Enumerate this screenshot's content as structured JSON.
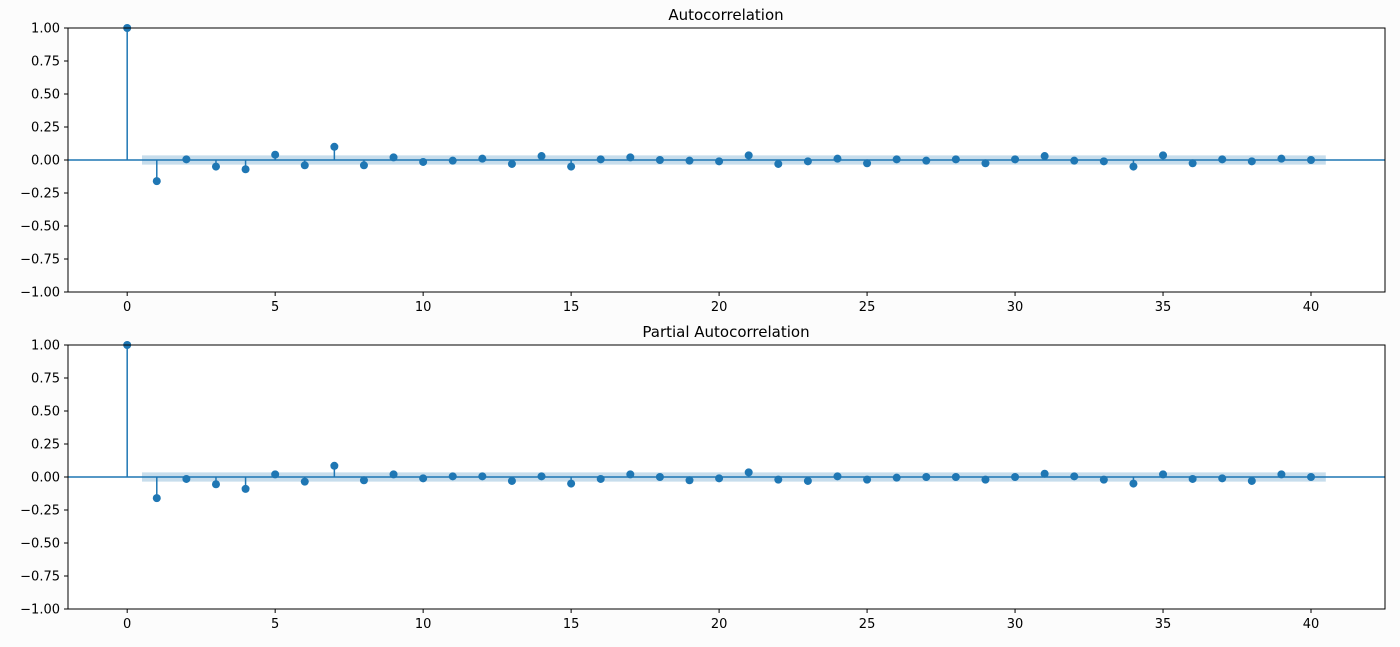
{
  "colors": {
    "stem": "#1f77b4",
    "band": "#1f77b4",
    "axis": "#000000",
    "background": "#fcfcfc"
  },
  "chart_data": [
    {
      "type": "stem",
      "title": "Autocorrelation",
      "xlabel": "",
      "ylabel": "",
      "xlim": [
        -2,
        42.5
      ],
      "ylim": [
        -1.0,
        1.0
      ],
      "xticks": [
        0,
        5,
        10,
        15,
        20,
        25,
        30,
        35,
        40
      ],
      "yticks": [
        -1.0,
        -0.75,
        -0.5,
        -0.25,
        0.0,
        0.25,
        0.5,
        0.75,
        1.0
      ],
      "yticklabels": [
        "−1.00",
        "−0.75",
        "−0.50",
        "−0.25",
        "0.00",
        "0.25",
        "0.50",
        "0.75",
        "1.00"
      ],
      "confidence_band": {
        "x": [
          0.5,
          40.5
        ],
        "lower": -0.035,
        "upper": 0.035
      },
      "x": [
        0,
        1,
        2,
        3,
        4,
        5,
        6,
        7,
        8,
        9,
        10,
        11,
        12,
        13,
        14,
        15,
        16,
        17,
        18,
        19,
        20,
        21,
        22,
        23,
        24,
        25,
        26,
        27,
        28,
        29,
        30,
        31,
        32,
        33,
        34,
        35,
        36,
        37,
        38,
        39,
        40
      ],
      "values": [
        1.0,
        -0.16,
        0.005,
        -0.05,
        -0.07,
        0.04,
        -0.04,
        0.1,
        -0.04,
        0.02,
        -0.015,
        -0.005,
        0.01,
        -0.03,
        0.03,
        -0.05,
        0.005,
        0.02,
        0.0,
        -0.005,
        -0.01,
        0.035,
        -0.03,
        -0.01,
        0.01,
        -0.025,
        0.005,
        -0.005,
        0.005,
        -0.025,
        0.005,
        0.03,
        -0.005,
        -0.01,
        -0.05,
        0.035,
        -0.025,
        0.005,
        -0.01,
        0.01,
        0.0
      ]
    },
    {
      "type": "stem",
      "title": "Partial Autocorrelation",
      "xlabel": "",
      "ylabel": "",
      "xlim": [
        -2,
        42.5
      ],
      "ylim": [
        -1.0,
        1.0
      ],
      "xticks": [
        0,
        5,
        10,
        15,
        20,
        25,
        30,
        35,
        40
      ],
      "yticks": [
        -1.0,
        -0.75,
        -0.5,
        -0.25,
        0.0,
        0.25,
        0.5,
        0.75,
        1.0
      ],
      "yticklabels": [
        "−1.00",
        "−0.75",
        "−0.50",
        "−0.25",
        "0.00",
        "0.25",
        "0.50",
        "0.75",
        "1.00"
      ],
      "confidence_band": {
        "x": [
          0.5,
          40.5
        ],
        "lower": -0.035,
        "upper": 0.035
      },
      "x": [
        0,
        1,
        2,
        3,
        4,
        5,
        6,
        7,
        8,
        9,
        10,
        11,
        12,
        13,
        14,
        15,
        16,
        17,
        18,
        19,
        20,
        21,
        22,
        23,
        24,
        25,
        26,
        27,
        28,
        29,
        30,
        31,
        32,
        33,
        34,
        35,
        36,
        37,
        38,
        39,
        40
      ],
      "values": [
        1.0,
        -0.16,
        -0.015,
        -0.055,
        -0.09,
        0.02,
        -0.035,
        0.085,
        -0.025,
        0.02,
        -0.01,
        0.005,
        0.005,
        -0.03,
        0.005,
        -0.05,
        -0.015,
        0.02,
        0.0,
        -0.025,
        -0.01,
        0.035,
        -0.02,
        -0.03,
        0.005,
        -0.02,
        -0.005,
        0.0,
        0.0,
        -0.02,
        0.0,
        0.025,
        0.005,
        -0.02,
        -0.05,
        0.02,
        -0.015,
        -0.01,
        -0.03,
        0.02,
        0.0
      ]
    }
  ]
}
